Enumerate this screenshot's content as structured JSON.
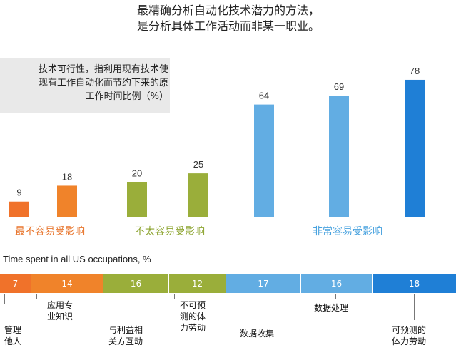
{
  "title": {
    "line1": "最精确分析自动化技术潜力的方法，",
    "line2": "是分析具体工作活动而非某一职业。"
  },
  "note": {
    "line1": "技术可行性，指利用现有技术使",
    "line2": "现有工作自动化而节约下来的原",
    "line3": "工作时间比例（%）"
  },
  "chart_data": {
    "type": "bar",
    "values": [
      9,
      18,
      20,
      25,
      64,
      69,
      78
    ],
    "colors": [
      "#f0722a",
      "#f0832a",
      "#9aae3a",
      "#9aae3a",
      "#62ade3",
      "#62ade3",
      "#1f7fd6"
    ],
    "groups": [
      {
        "label": "最不容易受影响",
        "color": "#e8762e"
      },
      {
        "label": "不太容易受影响",
        "color": "#8ea532"
      },
      {
        "label": "非常容易受影响",
        "color": "#4aa3df"
      }
    ],
    "ylim": [
      0,
      80
    ]
  },
  "strip": {
    "title": "Time spent in all US occupations, %",
    "segments": [
      {
        "value": "7",
        "color": "#f0722a"
      },
      {
        "value": "14",
        "color": "#f0832a"
      },
      {
        "value": "16",
        "color": "#9aae3a"
      },
      {
        "value": "12",
        "color": "#9aae3a"
      },
      {
        "value": "17",
        "color": "#62ade3"
      },
      {
        "value": "16",
        "color": "#62ade3"
      },
      {
        "value": "18",
        "color": "#1f7fd6"
      }
    ],
    "labels": [
      {
        "line1": "管理",
        "line2": "他人"
      },
      {
        "line1": "应用专",
        "line2": "业知识"
      },
      {
        "line1": "与利益相",
        "line2": "关方互动"
      },
      {
        "line1": "不可预",
        "line2": "测的体",
        "line3": "力劳动"
      },
      {
        "line1": "数据收集"
      },
      {
        "line1": "数据处理"
      },
      {
        "line1": "可预测的",
        "line2": "体力劳动"
      }
    ]
  }
}
